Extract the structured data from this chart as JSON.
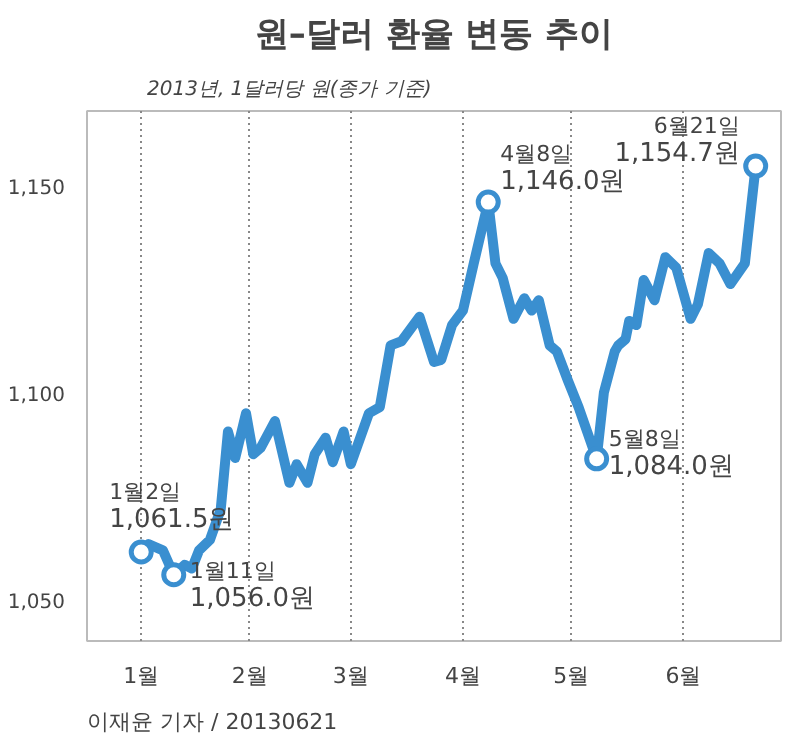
{
  "chart_data": {
    "type": "line",
    "title": "원–달러 환율 변동 추이",
    "subtitle": "2013년, 1달러당 원(종가 기준)",
    "x": [
      "2013-01-02",
      "2013-01-04",
      "2013-01-08",
      "2013-01-11",
      "2013-01-14",
      "2013-01-16",
      "2013-01-18",
      "2013-01-21",
      "2013-01-24",
      "2013-01-26",
      "2013-01-28",
      "2013-01-31",
      "2013-02-02",
      "2013-02-04",
      "2013-02-08",
      "2013-02-12",
      "2013-02-14",
      "2013-02-17",
      "2013-02-19",
      "2013-02-22",
      "2013-02-24",
      "2013-02-27",
      "2013-03-01",
      "2013-03-06",
      "2013-03-09",
      "2013-03-12",
      "2013-03-15",
      "2013-03-20",
      "2013-03-24",
      "2013-03-26",
      "2013-03-29",
      "2013-04-01",
      "2013-04-04",
      "2013-04-08",
      "2013-04-10",
      "2013-04-12",
      "2013-04-15",
      "2013-04-18",
      "2013-04-20",
      "2013-04-22",
      "2013-04-25",
      "2013-04-27",
      "2013-04-30",
      "2013-05-03",
      "2013-05-08",
      "2013-05-10",
      "2013-05-13",
      "2013-05-14",
      "2013-05-16",
      "2013-05-17",
      "2013-05-19",
      "2013-05-21",
      "2013-05-24",
      "2013-05-27",
      "2013-05-30",
      "2013-06-03",
      "2013-06-05",
      "2013-06-08",
      "2013-06-11",
      "2013-06-14",
      "2013-06-18",
      "2013-06-21"
    ],
    "series": [
      {
        "color": "#3a8fd0",
        "values": [
          1061.5,
          1063.4,
          1061.9,
          1056.0,
          1058.4,
          1057.5,
          1061.9,
          1064.4,
          1071.8,
          1090.6,
          1084.2,
          1095.0,
          1085.1,
          1086.6,
          1093.1,
          1078.2,
          1082.7,
          1078.2,
          1085.1,
          1089.1,
          1083.2,
          1090.6,
          1082.7,
          1095.0,
          1096.5,
          1111.4,
          1112.4,
          1118.3,
          1107.4,
          1107.9,
          1116.3,
          1119.8,
          1131.2,
          1146.0,
          1131.2,
          1127.7,
          1117.8,
          1122.8,
          1119.8,
          1122.3,
          1111.4,
          1109.9,
          1103.0,
          1096.5,
          1084.0,
          1100.0,
          1109.9,
          1111.4,
          1112.9,
          1117.3,
          1116.3,
          1127.2,
          1122.3,
          1132.7,
          1130.2,
          1117.8,
          1121.3,
          1133.7,
          1131.2,
          1126.2,
          1131.2,
          1154.7
        ]
      }
    ],
    "xlim": [
      "2012-12-18",
      "2013-06-28"
    ],
    "xticks": [
      {
        "value": "2013-01-02",
        "label": "1월"
      },
      {
        "value": "2013-02-01",
        "label": "2월"
      },
      {
        "value": "2013-03-01",
        "label": "3월"
      },
      {
        "value": "2013-04-01",
        "label": "4월"
      },
      {
        "value": "2013-05-01",
        "label": "5월"
      },
      {
        "value": "2013-06-01",
        "label": "6월"
      }
    ],
    "ylim": [
      1040,
      1168
    ],
    "yticks": [
      {
        "value": 1050,
        "label": "1,050"
      },
      {
        "value": 1100,
        "label": "1,100"
      },
      {
        "value": 1150,
        "label": "1,150"
      }
    ],
    "grid": "x",
    "line_style": "solid",
    "annotations": [
      {
        "text": "1월2일\n1,061.5원",
        "x": "2013-01-02",
        "y": 1061.5
      },
      {
        "text": "1월11일\n1,056.0원",
        "x": "2013-01-11",
        "y": 1056.0
      },
      {
        "text": "4월8일\n1,146.0원",
        "x": "2013-04-08",
        "y": 1146.0
      },
      {
        "text": "5월8일\n1,084.0원",
        "x": "2013-05-08",
        "y": 1084.0
      },
      {
        "text": "6월21일\n1,154.7원",
        "x": "2013-06-21",
        "y": 1154.7
      },
      "이재윤 기자 / 20130621"
    ]
  }
}
